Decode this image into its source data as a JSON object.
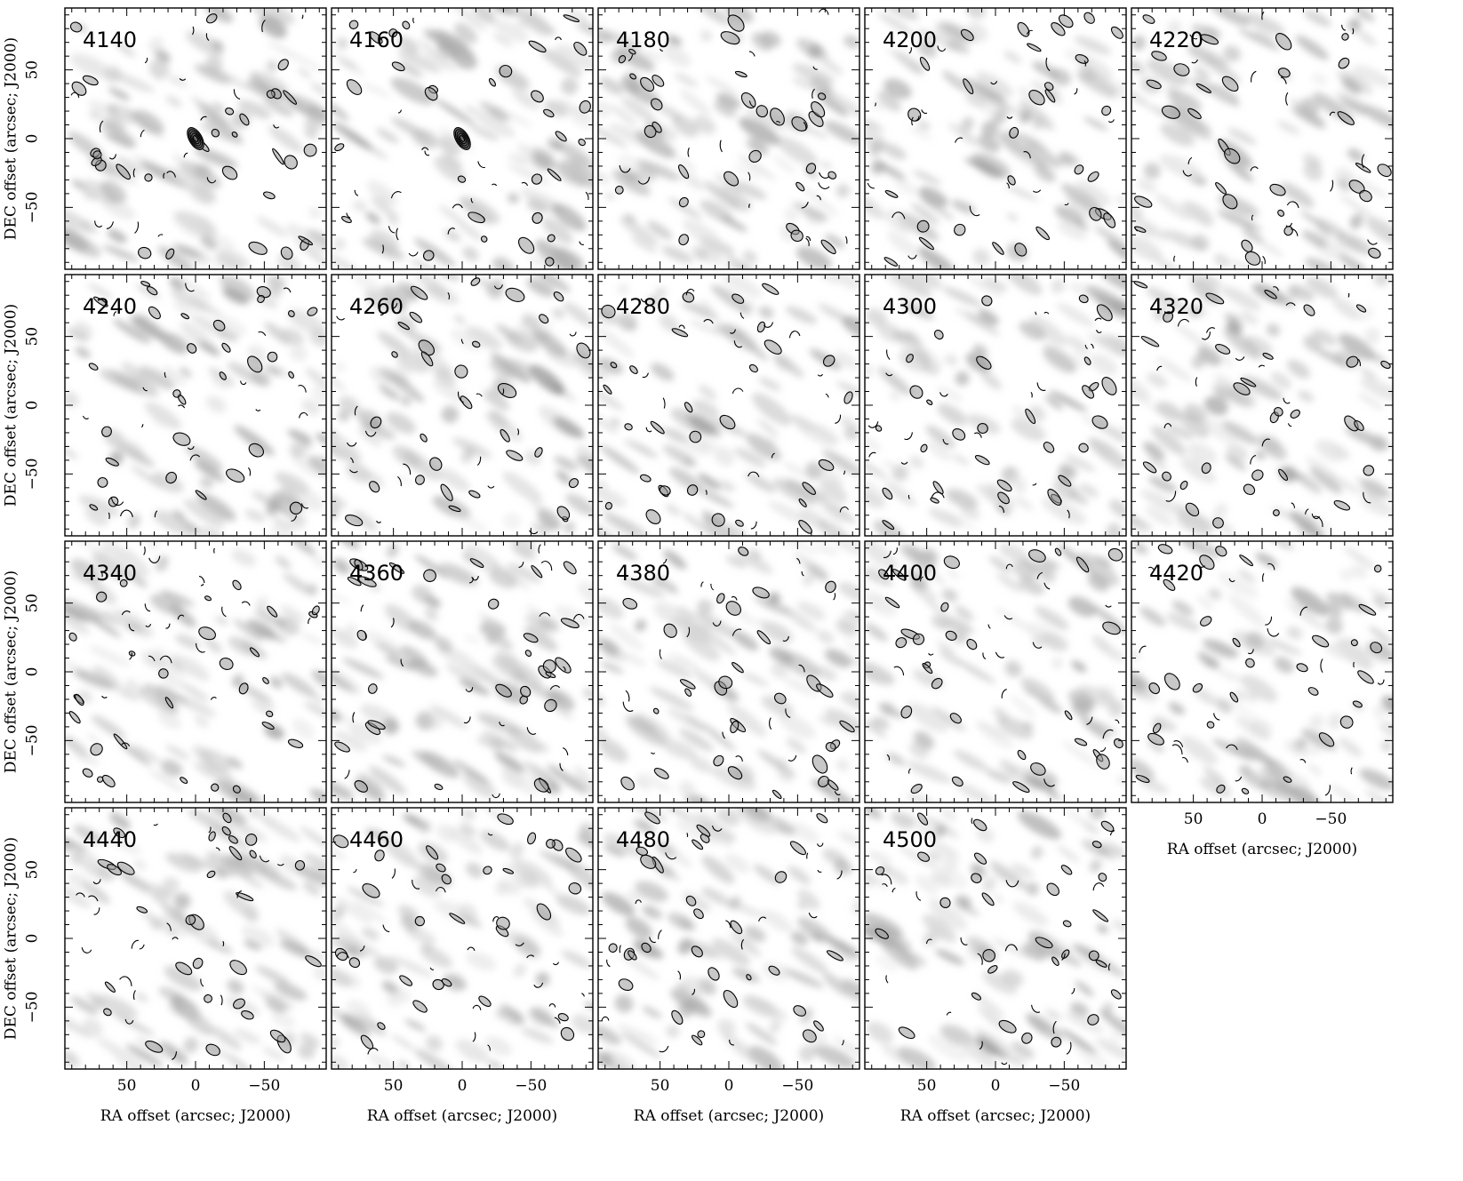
{
  "chart_data": {
    "type": "heatmap",
    "description_of_panels": "channel maps",
    "panels": [
      {
        "label": "4140"
      },
      {
        "label": "4160"
      },
      {
        "label": "4180"
      },
      {
        "label": "4200"
      },
      {
        "label": "4220"
      },
      {
        "label": "4240"
      },
      {
        "label": "4260"
      },
      {
        "label": "4280"
      },
      {
        "label": "4300"
      },
      {
        "label": "4320"
      },
      {
        "label": "4340"
      },
      {
        "label": "4360"
      },
      {
        "label": "4380"
      },
      {
        "label": "4400"
      },
      {
        "label": "4420"
      },
      {
        "label": "4440"
      },
      {
        "label": "4460"
      },
      {
        "label": "4480"
      },
      {
        "label": "4500"
      }
    ],
    "xlabel": "RA offset (arcsec; J2000)",
    "ylabel": "DEC offset (arcsec; J2000)",
    "xlim": [
      95,
      -95
    ],
    "ylim": [
      -95,
      95
    ],
    "x_ticks": [
      50,
      0,
      -50
    ],
    "x_tick_labels": [
      "50",
      "0",
      "−50"
    ],
    "y_ticks": [
      50,
      0,
      -50
    ],
    "y_tick_labels": [
      "50",
      "0",
      "−50"
    ],
    "colormap": "greyscale",
    "contours": "black",
    "compact_sources": [
      {
        "panel": "4140",
        "x": 0,
        "y": 0
      },
      {
        "panel": "4160",
        "x": 0,
        "y": 0
      }
    ]
  }
}
